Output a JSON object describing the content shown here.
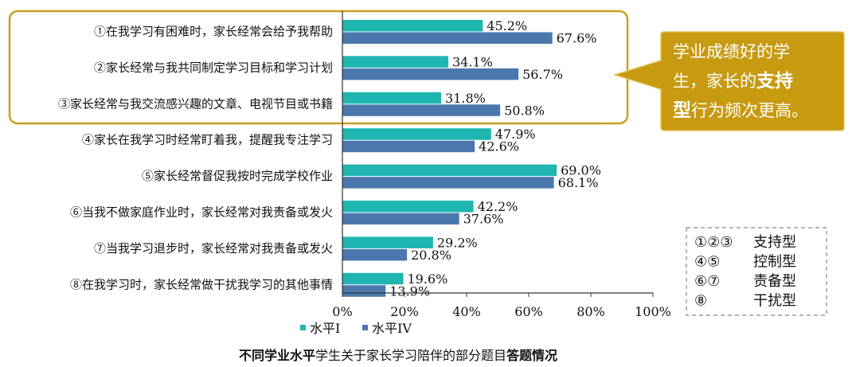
{
  "chart_data": {
    "type": "bar",
    "orientation": "horizontal",
    "title_parts": [
      {
        "text": "不同学业水平",
        "bold": true
      },
      {
        "text": "学生关于家长学习陪伴的部分题目",
        "bold": false
      },
      {
        "text": "答题情况",
        "bold": true
      }
    ],
    "categories": [
      "①在我学习有困难时，家长经常会给予我帮助",
      "②家长经常与我共同制定学习目标和学习计划",
      "③家长经常与我交流感兴趣的文章、电视节目或书籍",
      "④家长在我学习时经常盯着我，提醒我专注学习",
      "⑤家长经常督促我按时完成学校作业",
      "⑥当我不做家庭作业时，家长经常对我责备或发火",
      "⑦当我学习退步时，家长经常对我责备或发火",
      "⑧在我学习时，家长经常做干扰我学习的其他事情"
    ],
    "series": [
      {
        "name": "水平I",
        "color": "#1fb5b0",
        "values": [
          45.2,
          34.1,
          31.8,
          47.9,
          69.0,
          42.2,
          29.2,
          19.6
        ],
        "labels": [
          "45.2%",
          "34.1%",
          "31.8%",
          "47.9%",
          "69.0%",
          "42.2%",
          "29.2%",
          "19.6%"
        ]
      },
      {
        "name": "水平IV",
        "color": "#4a78ae",
        "values": [
          67.6,
          56.7,
          50.8,
          42.6,
          68.1,
          37.6,
          20.8,
          13.9
        ],
        "labels": [
          "67.6%",
          "56.7%",
          "50.8%",
          "42.6%",
          "68.1%",
          "37.6%",
          "20.8%",
          "13.9%"
        ]
      }
    ],
    "xlim": [
      0,
      100
    ],
    "xticks": [
      "0%",
      "20%",
      "40%",
      "60%",
      "80%",
      "100%"
    ],
    "grid": false,
    "legend_position": "bottom-left",
    "annotations": {
      "callout_lines": [
        [
          {
            "text": "学业成绩好的学",
            "bold": false
          }
        ],
        [
          {
            "text": "生，家长的",
            "bold": false
          },
          {
            "text": "支持",
            "bold": true
          }
        ],
        [
          {
            "text": "型",
            "bold": true
          },
          {
            "text": "行为频次更高。",
            "bold": false
          }
        ]
      ],
      "key": [
        {
          "items": "①②③",
          "type": "支持型"
        },
        {
          "items": "④⑤",
          "type": "控制型"
        },
        {
          "items": "⑥⑦",
          "type": "责备型"
        },
        {
          "items": "⑧",
          "type": "干扰型"
        }
      ]
    }
  },
  "colors": {
    "highlight_border": "#c8a020",
    "callout_fill": "#c79a10",
    "axis": "#333333",
    "key_border": "#888888"
  }
}
